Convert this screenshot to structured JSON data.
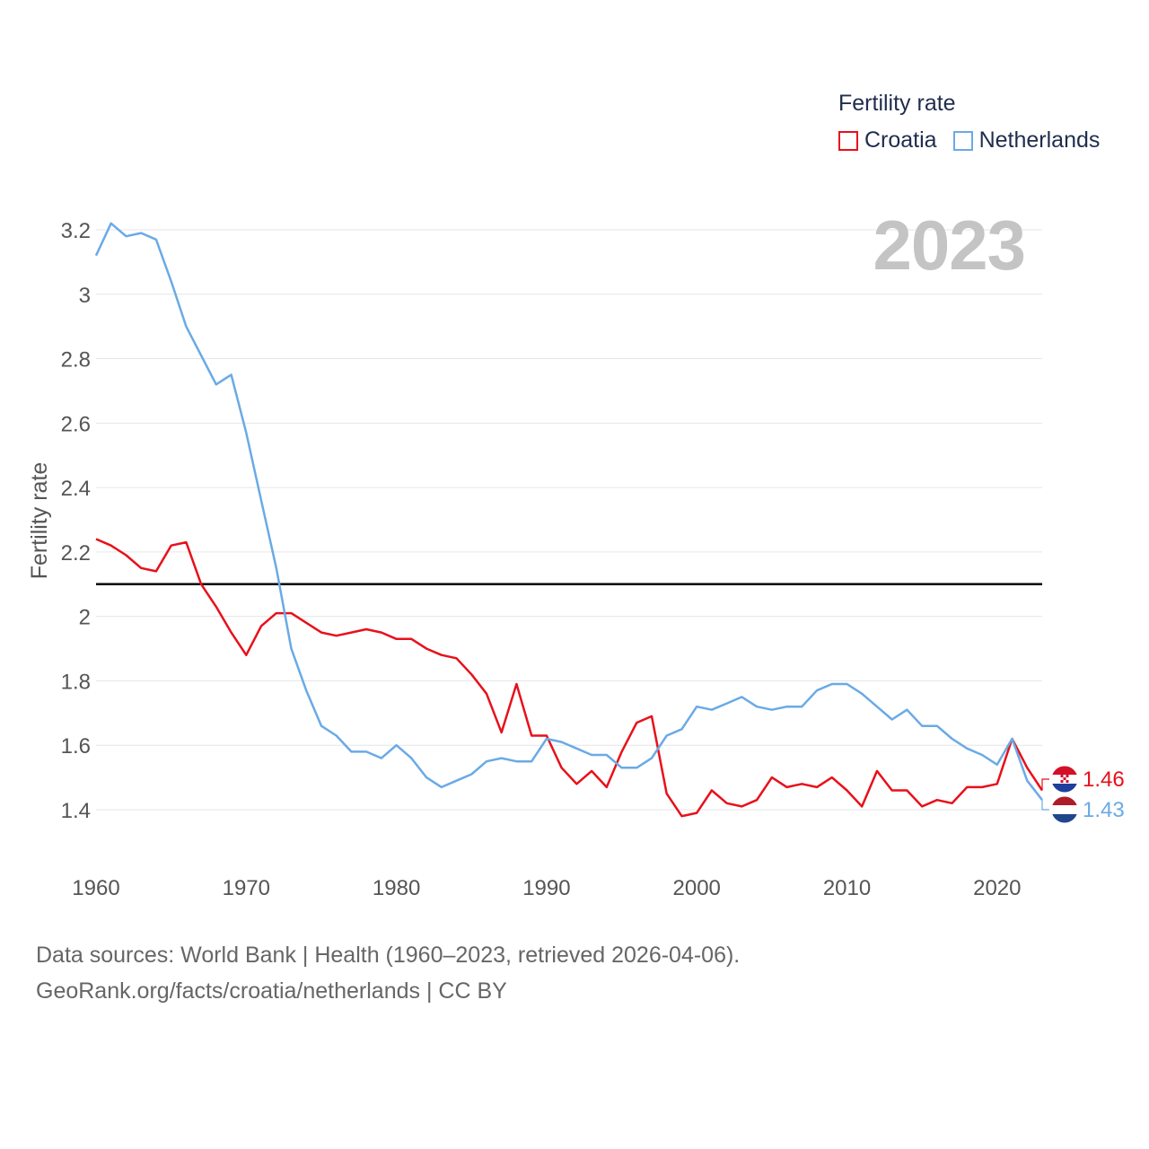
{
  "chart_data": {
    "type": "line",
    "title": "Fertility rate",
    "ylabel": "Fertility rate",
    "xlabel": "",
    "year_display": "2023",
    "xlim": [
      1960,
      2023
    ],
    "ylim": [
      1.3,
      3.25
    ],
    "x_ticks": [
      1960,
      1970,
      1980,
      1990,
      2000,
      2010,
      2020
    ],
    "x_tick_labels": [
      "1960",
      "1970",
      "1980",
      "1990",
      "2000",
      "2010",
      "2020"
    ],
    "y_ticks": [
      1.4,
      1.6,
      1.8,
      2.0,
      2.2,
      2.4,
      2.6,
      2.8,
      3.0,
      3.2
    ],
    "y_tick_labels": [
      "1.4",
      "1.6",
      "1.8",
      "2",
      "2.2",
      "2.4",
      "2.6",
      "2.8",
      "3",
      "3.2"
    ],
    "reference_line": {
      "value": 2.1,
      "color": "#000000"
    },
    "grid": true,
    "legend_position": "top-right",
    "x": [
      1960,
      1961,
      1962,
      1963,
      1964,
      1965,
      1966,
      1967,
      1968,
      1969,
      1970,
      1971,
      1972,
      1973,
      1974,
      1975,
      1976,
      1977,
      1978,
      1979,
      1980,
      1981,
      1982,
      1983,
      1984,
      1985,
      1986,
      1987,
      1988,
      1989,
      1990,
      1991,
      1992,
      1993,
      1994,
      1995,
      1996,
      1997,
      1998,
      1999,
      2000,
      2001,
      2002,
      2003,
      2004,
      2005,
      2006,
      2007,
      2008,
      2009,
      2010,
      2011,
      2012,
      2013,
      2014,
      2015,
      2016,
      2017,
      2018,
      2019,
      2020,
      2021,
      2022,
      2023
    ],
    "series": [
      {
        "name": "Croatia",
        "color": "#e8101a",
        "end_label": "1.46",
        "flag": "croatia-flag",
        "values": [
          2.24,
          2.22,
          2.19,
          2.15,
          2.14,
          2.22,
          2.23,
          2.1,
          2.03,
          1.95,
          1.88,
          1.97,
          2.01,
          2.01,
          1.98,
          1.95,
          1.94,
          1.95,
          1.96,
          1.95,
          1.93,
          1.93,
          1.9,
          1.88,
          1.87,
          1.82,
          1.76,
          1.64,
          1.79,
          1.63,
          1.63,
          1.53,
          1.48,
          1.52,
          1.47,
          1.58,
          1.67,
          1.69,
          1.45,
          1.38,
          1.39,
          1.46,
          1.42,
          1.41,
          1.43,
          1.5,
          1.47,
          1.48,
          1.47,
          1.5,
          1.46,
          1.41,
          1.52,
          1.46,
          1.46,
          1.41,
          1.43,
          1.42,
          1.47,
          1.47,
          1.48,
          1.62,
          1.53,
          1.46
        ]
      },
      {
        "name": "Netherlands",
        "color": "#6aaae6",
        "end_label": "1.43",
        "flag": "netherlands-flag",
        "values": [
          3.12,
          3.22,
          3.18,
          3.19,
          3.17,
          3.04,
          2.9,
          2.81,
          2.72,
          2.75,
          2.57,
          2.36,
          2.15,
          1.9,
          1.77,
          1.66,
          1.63,
          1.58,
          1.58,
          1.56,
          1.6,
          1.56,
          1.5,
          1.47,
          1.49,
          1.51,
          1.55,
          1.56,
          1.55,
          1.55,
          1.62,
          1.61,
          1.59,
          1.57,
          1.57,
          1.53,
          1.53,
          1.56,
          1.63,
          1.65,
          1.72,
          1.71,
          1.73,
          1.75,
          1.72,
          1.71,
          1.72,
          1.72,
          1.77,
          1.79,
          1.79,
          1.76,
          1.72,
          1.68,
          1.71,
          1.66,
          1.66,
          1.62,
          1.59,
          1.57,
          1.54,
          1.62,
          1.49,
          1.43
        ]
      }
    ]
  },
  "legend": {
    "title": "Fertility rate",
    "items": [
      "Croatia",
      "Netherlands"
    ]
  },
  "footer": {
    "line1": "Data sources: World Bank | Health (1960–2023, retrieved 2026-04-06).",
    "line2": "GeoRank.org/facts/croatia/netherlands | CC BY"
  }
}
